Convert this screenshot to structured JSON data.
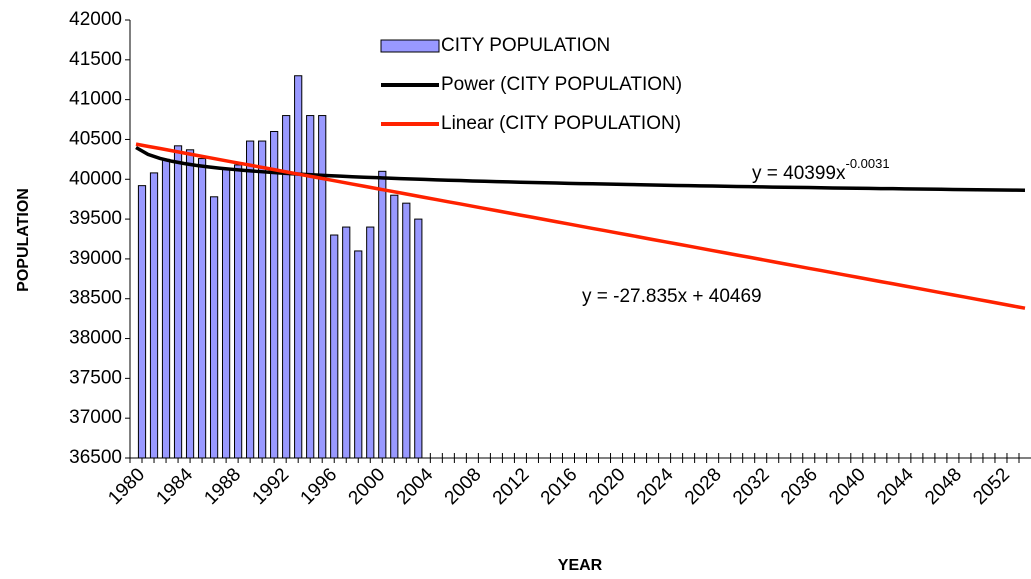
{
  "chart_data": {
    "type": "bar",
    "y_label": "POPULATION",
    "x_label": "YEAR",
    "categories": [
      "1980",
      null,
      null,
      null,
      "1984",
      null,
      null,
      null,
      "1988",
      null,
      null,
      null,
      "1992",
      null,
      null,
      null,
      "1996",
      null,
      null,
      null,
      "2000",
      null,
      null,
      null,
      "2004",
      null,
      null,
      null,
      "2008",
      null,
      null,
      null,
      "2012",
      null,
      null,
      null,
      "2016",
      null,
      null,
      null,
      "2020",
      null,
      null,
      null,
      "2024",
      null,
      null,
      null,
      "2028",
      null,
      null,
      null,
      "2032",
      null,
      null,
      null,
      "2036",
      null,
      null,
      null,
      "2040",
      null,
      null,
      null,
      "2044",
      null,
      null,
      null,
      "2048",
      null,
      null,
      null,
      "2052",
      null,
      null
    ],
    "series": [
      {
        "name": "CITY POPULATION",
        "type": "bar",
        "color": "#9999ff",
        "values": [
          39920,
          40080,
          40250,
          40420,
          40370,
          40260,
          39780,
          40130,
          40180,
          40480,
          40480,
          40600,
          40800,
          41300,
          40800,
          40800,
          39300,
          39400,
          39100,
          39400,
          40100,
          39800,
          39700,
          39500,
          null,
          null,
          null,
          null,
          null,
          null,
          null,
          null,
          null,
          null,
          null,
          null,
          null,
          null,
          null,
          null,
          null,
          null,
          null,
          null,
          null,
          null,
          null,
          null,
          null,
          null,
          null,
          null,
          null,
          null,
          null,
          null,
          null,
          null,
          null,
          null,
          null,
          null,
          null,
          null,
          null,
          null,
          null,
          null,
          null,
          null,
          null,
          null,
          null,
          null,
          null
        ]
      },
      {
        "name": "Power (CITY POPULATION)",
        "type": "line",
        "color": "#000000",
        "values": [
          40399,
          40312,
          40262,
          40226,
          40198,
          40175,
          40156,
          40139,
          40125,
          40112,
          40100,
          40089,
          40079,
          40070,
          40061,
          40053,
          40046,
          40039,
          40032,
          40026,
          40020,
          40014,
          40008,
          40003,
          39998,
          39993,
          39988,
          39984,
          39979,
          39975,
          39971,
          39967,
          39963,
          39960,
          39956,
          39953,
          39949,
          39946,
          39943,
          39940,
          39937,
          39934,
          39931,
          39928,
          39925,
          39922,
          39920,
          39917,
          39915,
          39912,
          39910,
          39907,
          39905,
          39902,
          39900,
          39898,
          39896,
          39894,
          39891,
          39889,
          39887,
          39885,
          39883,
          39882,
          39880,
          39878,
          39876,
          39874,
          39872,
          39870,
          39869,
          39867,
          39865,
          39864,
          39862
        ]
      },
      {
        "name": "Linear (CITY POPULATION)",
        "type": "line",
        "color": "#ff2200",
        "values": [
          40441,
          40413,
          40386,
          40358,
          40330,
          40302,
          40274,
          40246,
          40218,
          40191,
          40163,
          40135,
          40107,
          40079,
          40051,
          40024,
          39996,
          39968,
          39940,
          39912,
          39884,
          39857,
          39829,
          39801,
          39773,
          39745,
          39717,
          39690,
          39662,
          39634,
          39606,
          39578,
          39550,
          39523,
          39495,
          39467,
          39439,
          39411,
          39383,
          39356,
          39328,
          39300,
          39272,
          39244,
          39216,
          39189,
          39161,
          39133,
          39105,
          39077,
          39049,
          39022,
          38994,
          38966,
          38938,
          38910,
          38882,
          38855,
          38827,
          38799,
          38771,
          38743,
          38715,
          38688,
          38660,
          38632,
          38604,
          38576,
          38548,
          38521,
          38493,
          38465,
          38437,
          38409,
          38381
        ]
      }
    ],
    "annotations": [
      {
        "text": "y = 40399x",
        "superscript": "-0.0031"
      },
      {
        "text": "y = -27.835x + 40469"
      }
    ],
    "ylim": [
      36500,
      42000
    ],
    "yticks": [
      36500,
      37000,
      37500,
      38000,
      38500,
      39000,
      39500,
      40000,
      40500,
      41000,
      41500,
      42000
    ],
    "grid": false
  }
}
